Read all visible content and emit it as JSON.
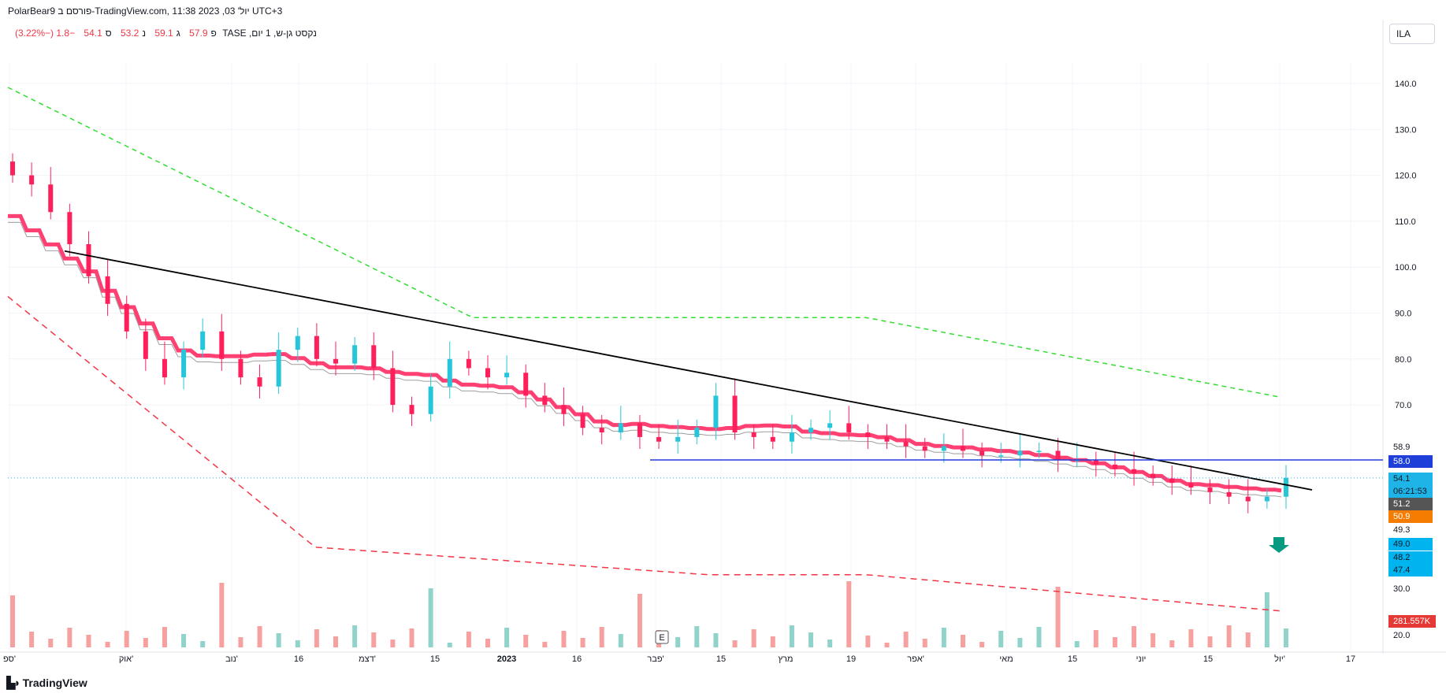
{
  "header": {
    "title": "PolarBear9 פורסם ב-TradingView.com, יול' 03, 2023 11:38 UTC+3",
    "symbol": "נקסט גן-ש, 1 יום, TASE",
    "open_label": "פ",
    "open": "57.9",
    "high_label": "ג",
    "high": "59.1",
    "low_label": "נ",
    "low": "53.2",
    "close_label": "ס",
    "close": "54.1",
    "change": "−1.8 (−3.22%)",
    "currency_button": "ILA"
  },
  "price_axis": {
    "ticks": [
      "140.0",
      "130.0",
      "120.0",
      "110.0",
      "100.0",
      "90.0",
      "80.0",
      "70.0"
    ],
    "labels": {
      "v58_9": "58.9",
      "v58_0": "58.0",
      "v54_1": "54.1",
      "timer": "06:21:53",
      "v51_2": "51.2",
      "v50_9": "50.9",
      "v49_3": "49.3",
      "v49_0": "49.0",
      "v48_2": "48.2",
      "v47_4": "47.4",
      "v30": "30.0",
      "v20": "20.0",
      "volume": "281.557K"
    }
  },
  "time_axis": [
    "ספ'",
    "אוק'",
    "נוב'",
    "16",
    "דצמ'",
    "15",
    "2023",
    "16",
    "פבר'",
    "15",
    "מרץ",
    "19",
    "אפר'",
    "מאי",
    "15",
    "יוני",
    "15",
    "יול'",
    "17"
  ],
  "earnings_marker": "E",
  "footer": {
    "brand": "TradingView"
  },
  "colors": {
    "up": "#26c6da",
    "down": "#ff1f5a",
    "vol_up": "#8fd3cb",
    "vol_down": "#f7a0a0",
    "resistance": "#1e3fd8",
    "trendline": "#000000",
    "upper_band": "#33dd33",
    "lower_band": "#f23645",
    "last_price_line": "#29b6f6"
  },
  "chart_data": {
    "type": "candlestick",
    "interval": "1 day",
    "y_range": [
      20,
      148
    ],
    "grid": true,
    "horizontal_levels": [
      58.0
    ],
    "last_price": 54.1,
    "indicator_last_values": [
      58.9,
      51.2,
      50.9,
      49.3,
      49.0,
      48.2,
      47.4
    ],
    "last_volume": "281.557K",
    "close_series_approx": [
      120,
      118,
      112,
      105,
      98,
      92,
      86,
      80,
      76,
      82,
      86,
      80,
      76,
      74,
      82,
      85,
      80,
      79,
      83,
      78,
      70,
      68,
      74,
      80,
      78,
      76,
      77,
      72,
      70,
      68,
      65,
      64,
      66,
      63,
      62,
      63,
      65,
      72,
      64,
      63,
      62,
      64,
      65,
      66,
      64,
      63,
      62,
      61,
      60,
      61,
      60,
      59,
      59,
      60,
      60,
      58,
      58,
      57,
      56,
      55,
      54,
      53,
      52,
      51,
      50,
      49,
      50,
      54.1
    ]
  }
}
